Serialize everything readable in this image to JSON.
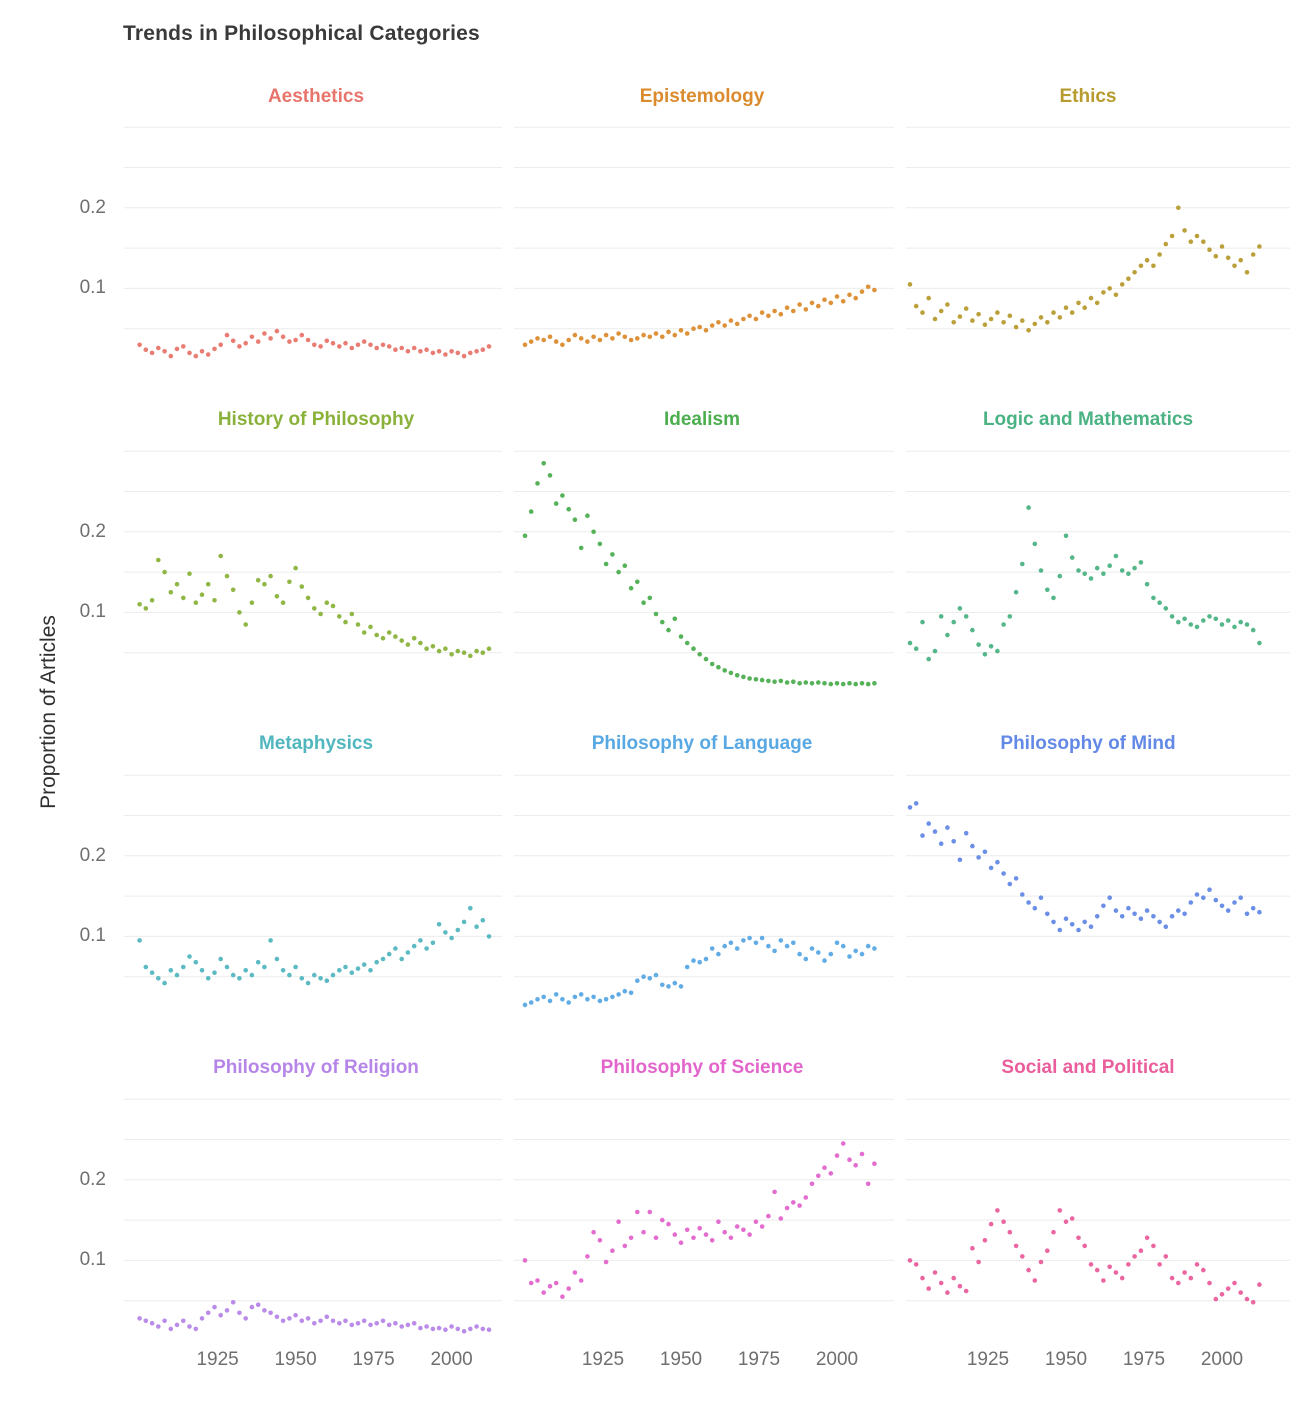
{
  "chart_data": {
    "type": "scatter",
    "title": "Trends in Philosophical Categories",
    "ylabel": "Proportion of Articles",
    "x": {
      "start": 1900,
      "step": 2,
      "count": 57
    },
    "x_tick_labels": [
      "1925",
      "1950",
      "1975",
      "2000"
    ],
    "x_tick_years": [
      1925,
      1950,
      1975,
      2000
    ],
    "y_tick_labels": [
      "0.2",
      "0.1"
    ],
    "y_tick_values": [
      0.2,
      0.1
    ],
    "gridlines_y": [
      0.05,
      0.1,
      0.15,
      0.2,
      0.25,
      0.3
    ],
    "ylim": [
      0,
      0.32
    ],
    "grid_color": "#ececec",
    "tick_color": "#6f6f6f",
    "legend_position": "none",
    "layout": "3 columns x 4 rows, shared axes, x ticks on bottom row only",
    "facets": [
      {
        "label": "Aesthetics",
        "color": "#E8756B",
        "values": [
          0.03,
          0.024,
          0.02,
          0.026,
          0.022,
          0.016,
          0.025,
          0.028,
          0.02,
          0.016,
          0.022,
          0.018,
          0.025,
          0.03,
          0.042,
          0.035,
          0.028,
          0.032,
          0.04,
          0.034,
          0.044,
          0.038,
          0.047,
          0.04,
          0.034,
          0.036,
          0.042,
          0.036,
          0.03,
          0.028,
          0.035,
          0.032,
          0.028,
          0.032,
          0.026,
          0.03,
          0.034,
          0.03,
          0.026,
          0.03,
          0.028,
          0.024,
          0.026,
          0.022,
          0.026,
          0.022,
          0.024,
          0.02,
          0.022,
          0.018,
          0.022,
          0.02,
          0.016,
          0.02,
          0.022,
          0.024,
          0.028
        ]
      },
      {
        "label": "Epistemology",
        "color": "#DB8B2D",
        "values": [
          0.03,
          0.034,
          0.038,
          0.036,
          0.04,
          0.034,
          0.03,
          0.036,
          0.042,
          0.038,
          0.034,
          0.04,
          0.036,
          0.042,
          0.038,
          0.044,
          0.04,
          0.036,
          0.038,
          0.042,
          0.04,
          0.044,
          0.04,
          0.046,
          0.042,
          0.048,
          0.044,
          0.05,
          0.052,
          0.048,
          0.054,
          0.058,
          0.054,
          0.06,
          0.056,
          0.062,
          0.066,
          0.062,
          0.07,
          0.066,
          0.072,
          0.068,
          0.076,
          0.072,
          0.08,
          0.074,
          0.082,
          0.078,
          0.086,
          0.082,
          0.09,
          0.084,
          0.092,
          0.088,
          0.096,
          0.102,
          0.098
        ]
      },
      {
        "label": "Ethics",
        "color": "#B79B2F",
        "values": [
          0.105,
          0.078,
          0.07,
          0.088,
          0.062,
          0.072,
          0.08,
          0.058,
          0.065,
          0.075,
          0.06,
          0.068,
          0.055,
          0.062,
          0.07,
          0.058,
          0.066,
          0.052,
          0.06,
          0.048,
          0.056,
          0.064,
          0.058,
          0.07,
          0.064,
          0.076,
          0.07,
          0.082,
          0.076,
          0.088,
          0.082,
          0.095,
          0.1,
          0.092,
          0.105,
          0.112,
          0.12,
          0.128,
          0.135,
          0.128,
          0.142,
          0.155,
          0.165,
          0.2,
          0.172,
          0.158,
          0.165,
          0.158,
          0.148,
          0.14,
          0.152,
          0.138,
          0.128,
          0.135,
          0.12,
          0.142,
          0.152
        ]
      },
      {
        "label": "History of Philosophy",
        "color": "#8AB23B",
        "values": [
          0.11,
          0.105,
          0.115,
          0.165,
          0.15,
          0.125,
          0.135,
          0.118,
          0.148,
          0.112,
          0.122,
          0.135,
          0.115,
          0.17,
          0.145,
          0.128,
          0.1,
          0.085,
          0.112,
          0.14,
          0.135,
          0.145,
          0.12,
          0.112,
          0.138,
          0.155,
          0.132,
          0.118,
          0.105,
          0.098,
          0.112,
          0.108,
          0.095,
          0.088,
          0.098,
          0.085,
          0.075,
          0.082,
          0.072,
          0.068,
          0.075,
          0.07,
          0.065,
          0.06,
          0.068,
          0.062,
          0.055,
          0.058,
          0.052,
          0.055,
          0.048,
          0.052,
          0.05,
          0.046,
          0.052,
          0.05,
          0.055
        ]
      },
      {
        "label": "Idealism",
        "color": "#4CAE4F",
        "values": [
          0.195,
          0.225,
          0.26,
          0.285,
          0.27,
          0.235,
          0.245,
          0.228,
          0.215,
          0.18,
          0.22,
          0.2,
          0.185,
          0.16,
          0.172,
          0.15,
          0.158,
          0.13,
          0.138,
          0.112,
          0.118,
          0.098,
          0.088,
          0.078,
          0.092,
          0.07,
          0.062,
          0.055,
          0.048,
          0.042,
          0.036,
          0.032,
          0.028,
          0.025,
          0.022,
          0.02,
          0.018,
          0.017,
          0.016,
          0.015,
          0.014,
          0.015,
          0.013,
          0.014,
          0.012,
          0.013,
          0.012,
          0.013,
          0.012,
          0.011,
          0.012,
          0.011,
          0.012,
          0.011,
          0.012,
          0.011,
          0.012
        ]
      },
      {
        "label": "Logic and Mathematics",
        "color": "#4BB283",
        "values": [
          0.062,
          0.055,
          0.088,
          0.042,
          0.052,
          0.095,
          0.072,
          0.088,
          0.105,
          0.095,
          0.078,
          0.06,
          0.048,
          0.058,
          0.052,
          0.085,
          0.095,
          0.125,
          0.16,
          0.23,
          0.185,
          0.152,
          0.128,
          0.118,
          0.145,
          0.195,
          0.168,
          0.152,
          0.148,
          0.142,
          0.155,
          0.148,
          0.158,
          0.17,
          0.152,
          0.148,
          0.155,
          0.162,
          0.135,
          0.118,
          0.112,
          0.105,
          0.095,
          0.088,
          0.092,
          0.085,
          0.082,
          0.09,
          0.095,
          0.092,
          0.085,
          0.09,
          0.082,
          0.088,
          0.085,
          0.078,
          0.062
        ]
      },
      {
        "label": "Metaphysics",
        "color": "#52B6BF",
        "values": [
          0.095,
          0.062,
          0.055,
          0.048,
          0.042,
          0.058,
          0.052,
          0.062,
          0.075,
          0.068,
          0.058,
          0.048,
          0.055,
          0.072,
          0.062,
          0.052,
          0.048,
          0.058,
          0.052,
          0.068,
          0.062,
          0.095,
          0.072,
          0.058,
          0.052,
          0.062,
          0.048,
          0.042,
          0.052,
          0.048,
          0.045,
          0.052,
          0.058,
          0.062,
          0.055,
          0.06,
          0.065,
          0.058,
          0.068,
          0.072,
          0.078,
          0.085,
          0.072,
          0.08,
          0.088,
          0.095,
          0.085,
          0.092,
          0.115,
          0.105,
          0.098,
          0.108,
          0.118,
          0.135,
          0.112,
          0.12,
          0.1
        ]
      },
      {
        "label": "Philosophy of Language",
        "color": "#58A8E4",
        "values": [
          0.015,
          0.018,
          0.022,
          0.025,
          0.02,
          0.028,
          0.022,
          0.018,
          0.025,
          0.028,
          0.022,
          0.025,
          0.02,
          0.022,
          0.025,
          0.028,
          0.032,
          0.03,
          0.045,
          0.05,
          0.048,
          0.052,
          0.04,
          0.038,
          0.042,
          0.038,
          0.062,
          0.07,
          0.068,
          0.072,
          0.085,
          0.078,
          0.088,
          0.092,
          0.085,
          0.095,
          0.098,
          0.092,
          0.098,
          0.088,
          0.082,
          0.095,
          0.088,
          0.092,
          0.078,
          0.072,
          0.085,
          0.08,
          0.07,
          0.078,
          0.092,
          0.088,
          0.075,
          0.082,
          0.078,
          0.088,
          0.085
        ]
      },
      {
        "label": "Philosophy of Mind",
        "color": "#6389E6",
        "values": [
          0.26,
          0.265,
          0.225,
          0.24,
          0.23,
          0.215,
          0.235,
          0.218,
          0.195,
          0.228,
          0.212,
          0.198,
          0.205,
          0.185,
          0.192,
          0.178,
          0.165,
          0.172,
          0.152,
          0.142,
          0.135,
          0.148,
          0.128,
          0.118,
          0.108,
          0.122,
          0.115,
          0.108,
          0.118,
          0.112,
          0.125,
          0.138,
          0.148,
          0.132,
          0.125,
          0.135,
          0.128,
          0.122,
          0.132,
          0.125,
          0.118,
          0.112,
          0.125,
          0.132,
          0.128,
          0.142,
          0.152,
          0.148,
          0.158,
          0.145,
          0.138,
          0.132,
          0.142,
          0.148,
          0.128,
          0.135,
          0.13
        ]
      },
      {
        "label": "Philosophy of Religion",
        "color": "#B685E8",
        "values": [
          0.028,
          0.025,
          0.022,
          0.018,
          0.025,
          0.015,
          0.02,
          0.025,
          0.018,
          0.015,
          0.028,
          0.035,
          0.042,
          0.032,
          0.038,
          0.048,
          0.035,
          0.028,
          0.042,
          0.045,
          0.038,
          0.035,
          0.03,
          0.025,
          0.028,
          0.032,
          0.025,
          0.028,
          0.022,
          0.025,
          0.03,
          0.025,
          0.022,
          0.025,
          0.02,
          0.022,
          0.025,
          0.02,
          0.022,
          0.025,
          0.02,
          0.022,
          0.018,
          0.02,
          0.022,
          0.016,
          0.018,
          0.015,
          0.016,
          0.014,
          0.018,
          0.015,
          0.012,
          0.015,
          0.018,
          0.015,
          0.014
        ]
      },
      {
        "label": "Philosophy of Science",
        "color": "#E265CB",
        "values": [
          0.1,
          0.072,
          0.075,
          0.06,
          0.068,
          0.072,
          0.055,
          0.065,
          0.085,
          0.075,
          0.105,
          0.135,
          0.125,
          0.098,
          0.112,
          0.148,
          0.118,
          0.128,
          0.16,
          0.135,
          0.16,
          0.128,
          0.15,
          0.145,
          0.132,
          0.122,
          0.138,
          0.128,
          0.14,
          0.132,
          0.125,
          0.148,
          0.135,
          0.128,
          0.142,
          0.138,
          0.132,
          0.148,
          0.142,
          0.155,
          0.185,
          0.152,
          0.165,
          0.172,
          0.168,
          0.178,
          0.195,
          0.205,
          0.215,
          0.208,
          0.23,
          0.245,
          0.225,
          0.218,
          0.232,
          0.195,
          0.22
        ]
      },
      {
        "label": "Social and Political",
        "color": "#EA5E9C",
        "values": [
          0.1,
          0.095,
          0.078,
          0.065,
          0.085,
          0.072,
          0.06,
          0.078,
          0.068,
          0.062,
          0.115,
          0.098,
          0.125,
          0.145,
          0.162,
          0.148,
          0.135,
          0.118,
          0.105,
          0.088,
          0.075,
          0.098,
          0.112,
          0.135,
          0.162,
          0.148,
          0.152,
          0.128,
          0.118,
          0.095,
          0.088,
          0.075,
          0.092,
          0.085,
          0.078,
          0.095,
          0.105,
          0.112,
          0.128,
          0.118,
          0.095,
          0.105,
          0.078,
          0.072,
          0.085,
          0.078,
          0.095,
          0.088,
          0.072,
          0.052,
          0.058,
          0.065,
          0.072,
          0.06,
          0.052,
          0.048,
          0.07
        ]
      }
    ]
  }
}
